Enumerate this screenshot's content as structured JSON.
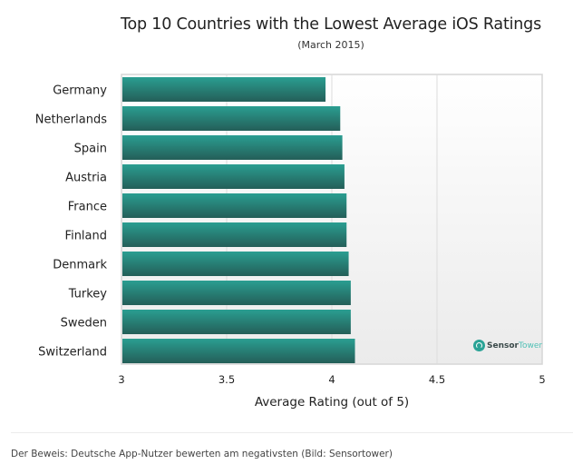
{
  "chart_data": {
    "type": "bar",
    "orientation": "horizontal",
    "title": "Top 10 Countries with the Lowest Average iOS Ratings",
    "subtitle": "(March 2015)",
    "xlabel": "Average Rating (out of 5)",
    "ylabel": "",
    "xlim": [
      3,
      5
    ],
    "xticks": [
      "3",
      "3.5",
      "4",
      "4.5",
      "5"
    ],
    "xtick_values": [
      3,
      3.5,
      4,
      4.5,
      5
    ],
    "grid": true,
    "categories": [
      "Germany",
      "Netherlands",
      "Spain",
      "Austria",
      "France",
      "Finland",
      "Denmark",
      "Turkey",
      "Sweden",
      "Switzerland"
    ],
    "values": [
      3.97,
      4.04,
      4.05,
      4.06,
      4.07,
      4.07,
      4.08,
      4.09,
      4.09,
      4.11
    ],
    "bar_color_top": "#2a9e91",
    "bar_color_bottom": "#245e58"
  },
  "watermark": {
    "brand_bold": "Sensor",
    "brand_light": "Tower"
  },
  "caption": "Der Beweis: Deutsche App-Nutzer bewerten am negativsten (Bild: Sensortower)"
}
